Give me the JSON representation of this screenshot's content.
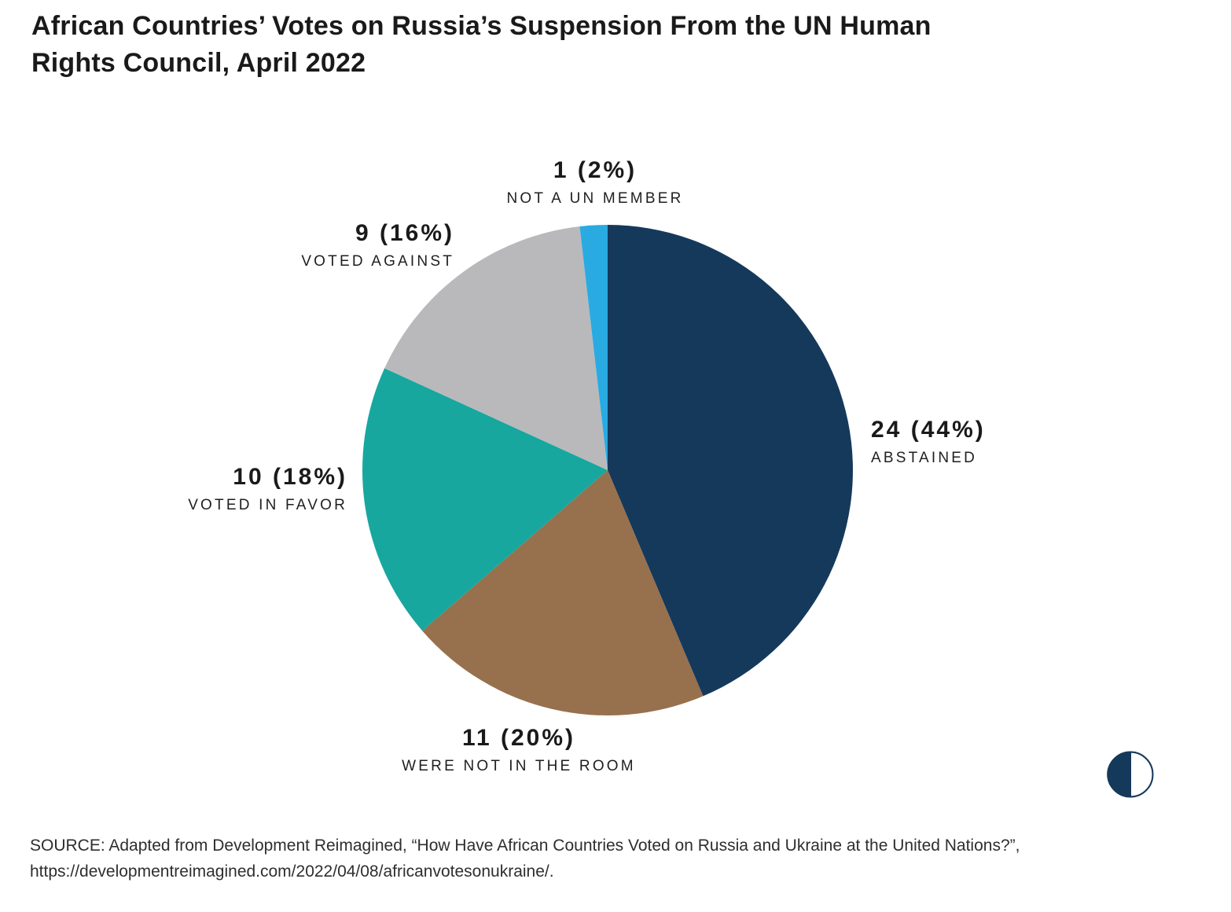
{
  "title": "African Countries’ Votes on Russia’s Suspension From the UN Human Rights Council, April 2022",
  "chart_data": {
    "type": "pie",
    "title": "African Countries’ Votes on Russia’s Suspension From the UN Human Rights Council, April 2022",
    "total": 55,
    "start_angle_deg": 0,
    "direction": "clockwise",
    "legend": "none",
    "slices": [
      {
        "label": "ABSTAINED",
        "value": 24,
        "pct": 44,
        "value_label": "24 (44%)",
        "color": "#15395B"
      },
      {
        "label": "WERE NOT IN THE ROOM",
        "value": 11,
        "pct": 20,
        "value_label": "11 (20%)",
        "color": "#97704E"
      },
      {
        "label": "VOTED IN FAVOR",
        "value": 10,
        "pct": 18,
        "value_label": "10 (18%)",
        "color": "#17A79F"
      },
      {
        "label": "VOTED AGAINST",
        "value": 9,
        "pct": 16,
        "value_label": "9 (16%)",
        "color": "#B9B9BB"
      },
      {
        "label": "NOT A UN MEMBER",
        "value": 1,
        "pct": 2,
        "value_label": "1 (2%)",
        "color": "#29ABE2"
      }
    ]
  },
  "source": {
    "text": "SOURCE: Adapted from Development Reimagined, “How Have African Countries Voted on Russia and Ukraine at the United Nations?”, https://developmentreimagined.com/2022/04/08/africanvotesonukraine/."
  },
  "logo": {
    "name": "carnegie-logo",
    "color": "#15395B"
  }
}
